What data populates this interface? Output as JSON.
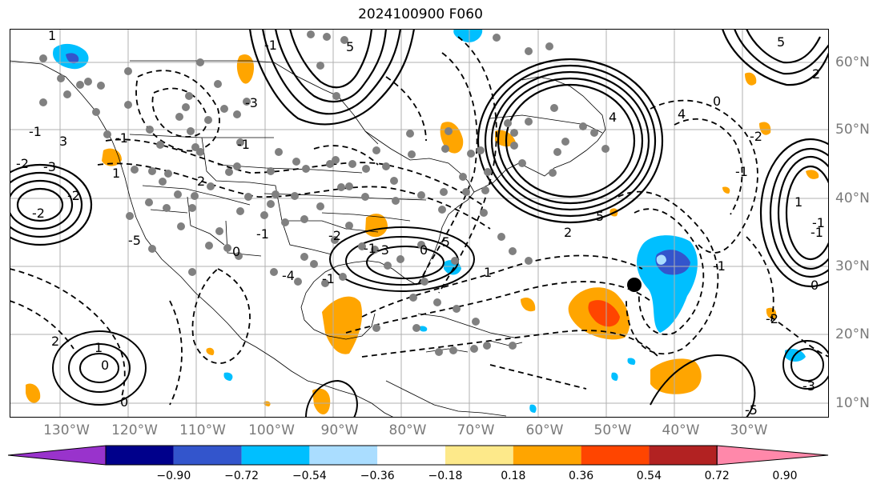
{
  "title": "2024100900 F060",
  "lon_labels": [
    "130°W",
    "120°W",
    "110°W",
    "100°W",
    "90°W",
    "80°W",
    "70°W",
    "60°W",
    "50°W",
    "40°W",
    "30°W"
  ],
  "lat_labels": [
    "60°N",
    "50°N",
    "40°N",
    "30°N",
    "20°N",
    "10°N"
  ],
  "colorbar": {
    "ticks": [
      "−0.90",
      "−0.72",
      "−0.54",
      "−0.36",
      "−0.18",
      "0.18",
      "0.36",
      "0.54",
      "0.72",
      "0.90"
    ],
    "colors": [
      "#9933cc",
      "#00008b",
      "#3355cc",
      "#00bfff",
      "#aaddff",
      "#ffffff",
      "#fde98a",
      "#ffa500",
      "#ff4500",
      "#b22222",
      "#ff88aa"
    ]
  },
  "contour_labels": [
    "1",
    "5",
    "5",
    "2",
    "4",
    "-1",
    "-2",
    "-3",
    "3",
    "-1",
    "-2",
    "1",
    "-2",
    "2",
    "-5",
    "0",
    "-1",
    "-1",
    "-3",
    "0",
    "1",
    "2",
    "5",
    "4",
    "0",
    "-2",
    "-1",
    "1",
    "-1",
    "-2",
    "-3",
    "-5",
    "0",
    "-1",
    "-1",
    "0",
    "1",
    "2",
    "0",
    "-1",
    "-2",
    "-5",
    "-4",
    "-3",
    "-1",
    "-1"
  ],
  "storm_marker": "filled-circle",
  "colors": {
    "grid": "#b0b0b0",
    "contour": "#000000",
    "station": "#808080",
    "axis_text": "#7a7a7a"
  }
}
